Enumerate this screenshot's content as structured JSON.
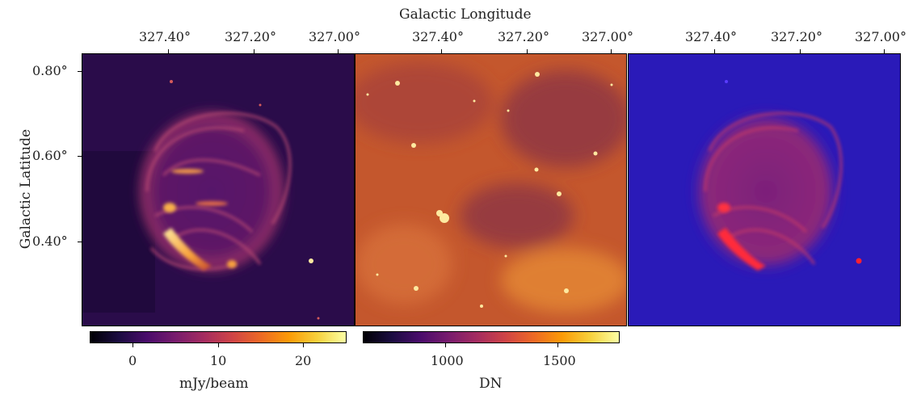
{
  "figure": {
    "x_axis_title": "Galactic Longitude",
    "y_axis_title": "Galactic Latitude",
    "x_tick_labels": [
      "327.40°",
      "327.20°",
      "327.00°"
    ],
    "y_tick_labels": [
      "0.80°",
      "0.60°",
      "0.40°"
    ]
  },
  "panels": [
    {
      "id": "radio",
      "colormap": "inferno"
    },
    {
      "id": "infrared",
      "colormap": "inferno"
    },
    {
      "id": "composite",
      "channels": [
        "red",
        "blue"
      ]
    }
  ],
  "colorbars": [
    {
      "id": "radio",
      "unit_label": "mJy/beam",
      "tick_labels": [
        "0",
        "10",
        "20"
      ],
      "colormap": "inferno"
    },
    {
      "id": "infrared",
      "unit_label": "DN",
      "tick_labels": [
        "1000",
        "1500"
      ],
      "colormap": "inferno"
    }
  ],
  "colors": {
    "radio_background": "#2a0c4a",
    "infrared_background": "#c4572d",
    "composite_background": "#2a1ab8",
    "composite_emission": "#ff2030"
  }
}
